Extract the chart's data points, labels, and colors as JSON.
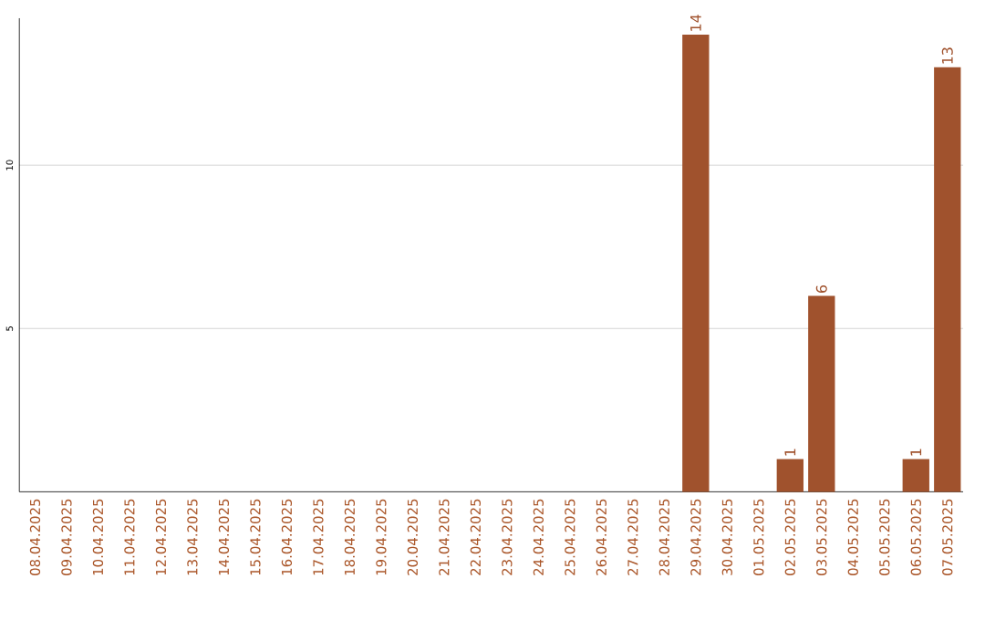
{
  "chart_data": {
    "type": "bar",
    "categories": [
      "08.04.2025",
      "09.04.2025",
      "10.04.2025",
      "11.04.2025",
      "12.04.2025",
      "13.04.2025",
      "14.04.2025",
      "15.04.2025",
      "16.04.2025",
      "17.04.2025",
      "18.04.2025",
      "19.04.2025",
      "20.04.2025",
      "21.04.2025",
      "22.04.2025",
      "23.04.2025",
      "24.04.2025",
      "25.04.2025",
      "26.04.2025",
      "27.04.2025",
      "28.04.2025",
      "29.04.2025",
      "30.04.2025",
      "01.05.2025",
      "02.05.2025",
      "03.05.2025",
      "04.05.2025",
      "05.05.2025",
      "06.05.2025",
      "07.05.2025"
    ],
    "values": [
      0,
      0,
      0,
      0,
      0,
      0,
      0,
      0,
      0,
      0,
      0,
      0,
      0,
      0,
      0,
      0,
      0,
      0,
      0,
      0,
      0,
      14,
      0,
      0,
      1,
      6,
      0,
      0,
      1,
      13
    ],
    "value_labels": [
      null,
      null,
      null,
      null,
      null,
      null,
      null,
      null,
      null,
      null,
      null,
      null,
      null,
      null,
      null,
      null,
      null,
      null,
      null,
      null,
      null,
      "14",
      null,
      null,
      "1",
      "6",
      null,
      null,
      "1",
      "13"
    ],
    "color": "#a0522d",
    "ylim": [
      0,
      14.5
    ],
    "yticks": [
      5,
      10
    ],
    "grid": "y"
  }
}
